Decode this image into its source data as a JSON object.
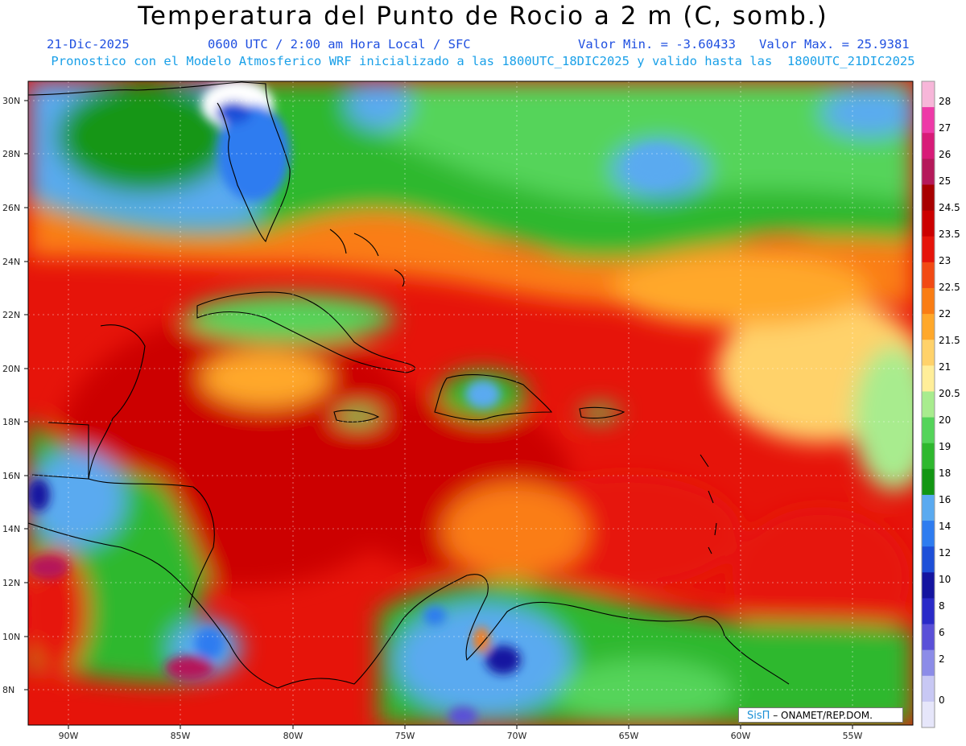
{
  "header": {
    "title": "Temperatura del Punto de Rocio a 2 m (C, somb.)",
    "date": "21-Dic-2025",
    "time": "0600 UTC / 2:00 am Hora Local / SFC",
    "min": "Valor Min. = -3.60433",
    "max": "Valor Max. = 25.9381",
    "model_line": "Pronostico con el Modelo Atmosferico WRF inicializado a las 1800UTC_18DIC2025 y valido hasta las  1800UTC_21DIC2025"
  },
  "axes": {
    "lat_labels": [
      "30N",
      "28N",
      "26N",
      "24N",
      "22N",
      "20N",
      "18N",
      "16N",
      "14N",
      "12N",
      "10N",
      "8N"
    ],
    "lon_labels": [
      "90W",
      "85W",
      "80W",
      "75W",
      "70W",
      "65W",
      "60W",
      "55W"
    ]
  },
  "colorbar": {
    "levels": [
      "28",
      "27",
      "26",
      "25",
      "24.5",
      "23.5",
      "23",
      "22.5",
      "22",
      "21.5",
      "21",
      "20.5",
      "20",
      "19",
      "18",
      "16",
      "14",
      "12",
      "10",
      "8",
      "6",
      "2",
      "0"
    ],
    "colors": [
      "#f7b6d9",
      "#ee3aa8",
      "#d81b78",
      "#b5195a",
      "#a80000",
      "#cc0000",
      "#e6140a",
      "#f24a14",
      "#fa7d14",
      "#ffa82a",
      "#ffd26a",
      "#ffee99",
      "#a8ec8e",
      "#54d45a",
      "#2eb82e",
      "#129612",
      "#5aaaf0",
      "#2e7cf0",
      "#1d4fd8",
      "#1414a0",
      "#2a2ac8",
      "#5a50d8",
      "#8c8ce8",
      "#c8c8f4",
      "#e6e6fa"
    ]
  },
  "credit": {
    "brand": "SisΠ",
    "text": " – ONAMET/REP.DOM."
  }
}
